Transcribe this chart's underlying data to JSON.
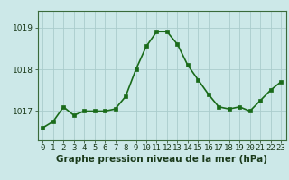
{
  "x": [
    0,
    1,
    2,
    3,
    4,
    5,
    6,
    7,
    8,
    9,
    10,
    11,
    12,
    13,
    14,
    15,
    16,
    17,
    18,
    19,
    20,
    21,
    22,
    23
  ],
  "y": [
    1016.6,
    1016.75,
    1017.1,
    1016.9,
    1017.0,
    1017.0,
    1017.0,
    1017.05,
    1017.35,
    1018.0,
    1018.55,
    1018.9,
    1018.9,
    1018.6,
    1018.1,
    1017.75,
    1017.4,
    1017.1,
    1017.05,
    1017.1,
    1017.0,
    1017.25,
    1017.5,
    1017.7
  ],
  "line_color": "#1a6b1a",
  "marker_color": "#1a6b1a",
  "bg_color": "#cce8e8",
  "grid_color": "#aacccc",
  "xlabel_text": "Graphe pression niveau de la mer (hPa)",
  "yticks": [
    1017,
    1018,
    1019
  ],
  "ylim": [
    1016.3,
    1019.4
  ],
  "xlim": [
    -0.5,
    23.5
  ],
  "xlabel_fontsize": 7.5,
  "tick_fontsize": 6.5,
  "line_width": 1.2,
  "marker_size": 2.5
}
